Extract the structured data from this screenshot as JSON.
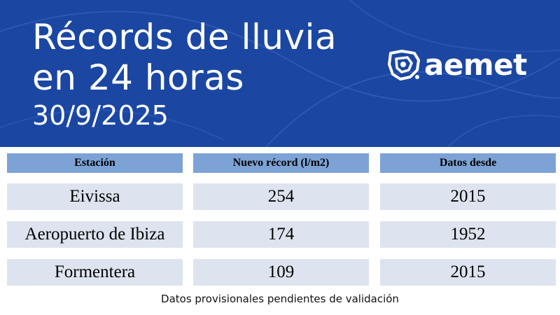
{
  "header": {
    "title_line1": "Récords de lluvia",
    "title_line2": "en 24 horas",
    "date": "30/9/2025",
    "background_color": "#1b47a3",
    "logo": {
      "text": "aemet",
      "icon": "aemet-logo-icon"
    }
  },
  "table": {
    "columns": [
      "Estación",
      "Nuevo récord (l/m2)",
      "Datos desde"
    ],
    "rows": [
      [
        "Eivissa",
        "254",
        "2015"
      ],
      [
        "Aeropuerto de Ibiza",
        "174",
        "1952"
      ],
      [
        "Formentera",
        "109",
        "2015"
      ]
    ],
    "header_color": "#7da3d6",
    "row_color": "#dde4ef"
  },
  "footnote": "Datos provisionales pendientes de validación"
}
